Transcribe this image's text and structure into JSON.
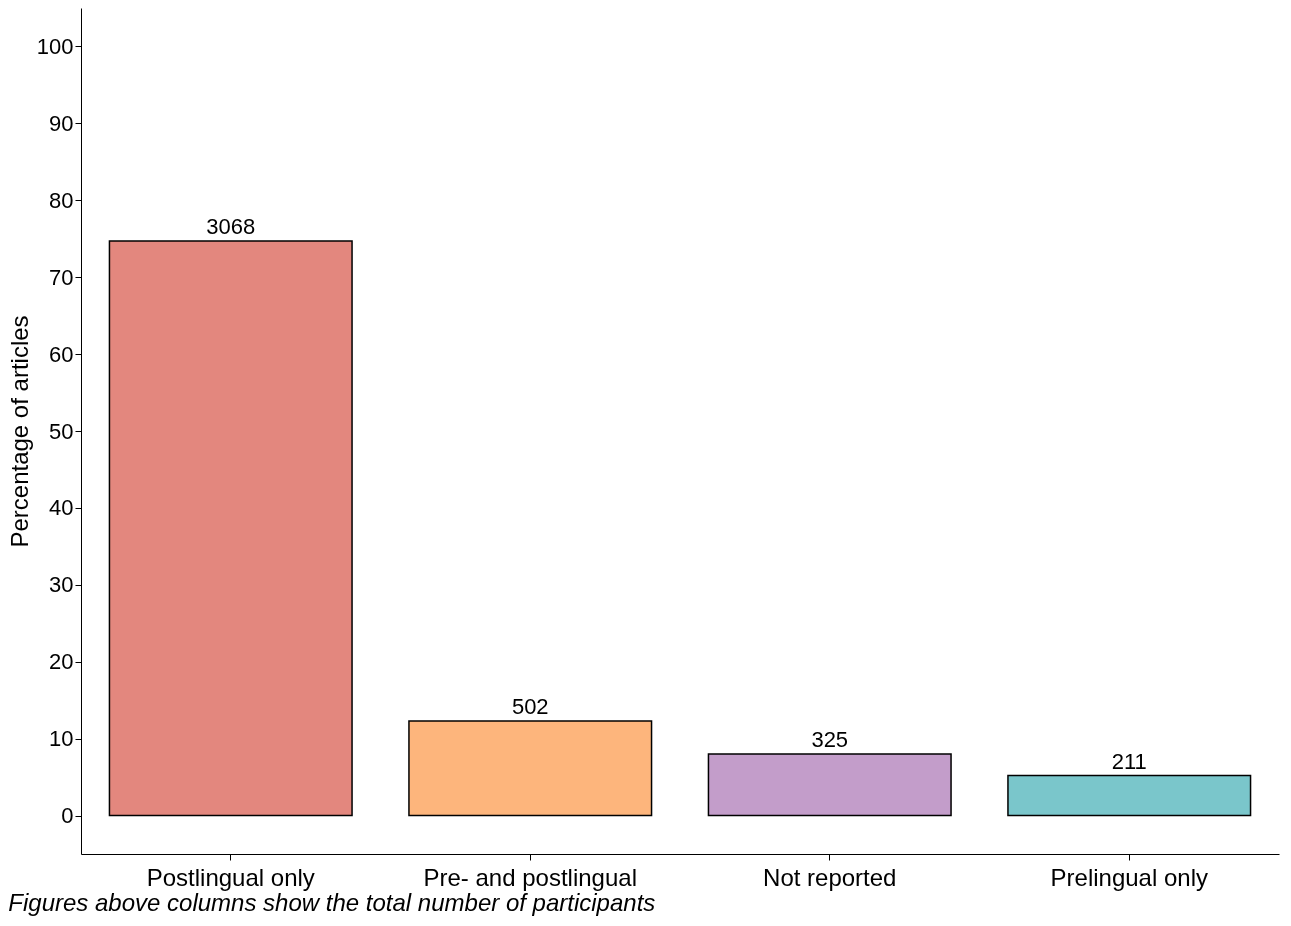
{
  "chart_data": {
    "type": "bar",
    "ylabel": "Percentage of articles",
    "categories": [
      "Postlingual only",
      "Pre- and postlingual",
      "Not reported",
      "Prelingual only"
    ],
    "values": [
      74.7,
      12.3,
      8.0,
      5.2
    ],
    "colors": [
      "#e3877e",
      "#fdb57c",
      "#c39dca",
      "#7ac6cb"
    ],
    "ylim": [
      -5,
      105
    ],
    "yticks": [
      0,
      10,
      20,
      30,
      40,
      50,
      60,
      70,
      80,
      90,
      100
    ],
    "grid": false,
    "annotations": [
      {
        "text": "3068",
        "x": "Postlingual only",
        "y": 74.7
      },
      {
        "text": "502",
        "x": "Pre- and postlingual",
        "y": 12.3
      },
      {
        "text": "325",
        "x": "Not reported",
        "y": 8.0
      },
      {
        "text": "211",
        "x": "Prelingual only",
        "y": 5.2
      },
      "Figures above columns show the total number of participants"
    ]
  }
}
